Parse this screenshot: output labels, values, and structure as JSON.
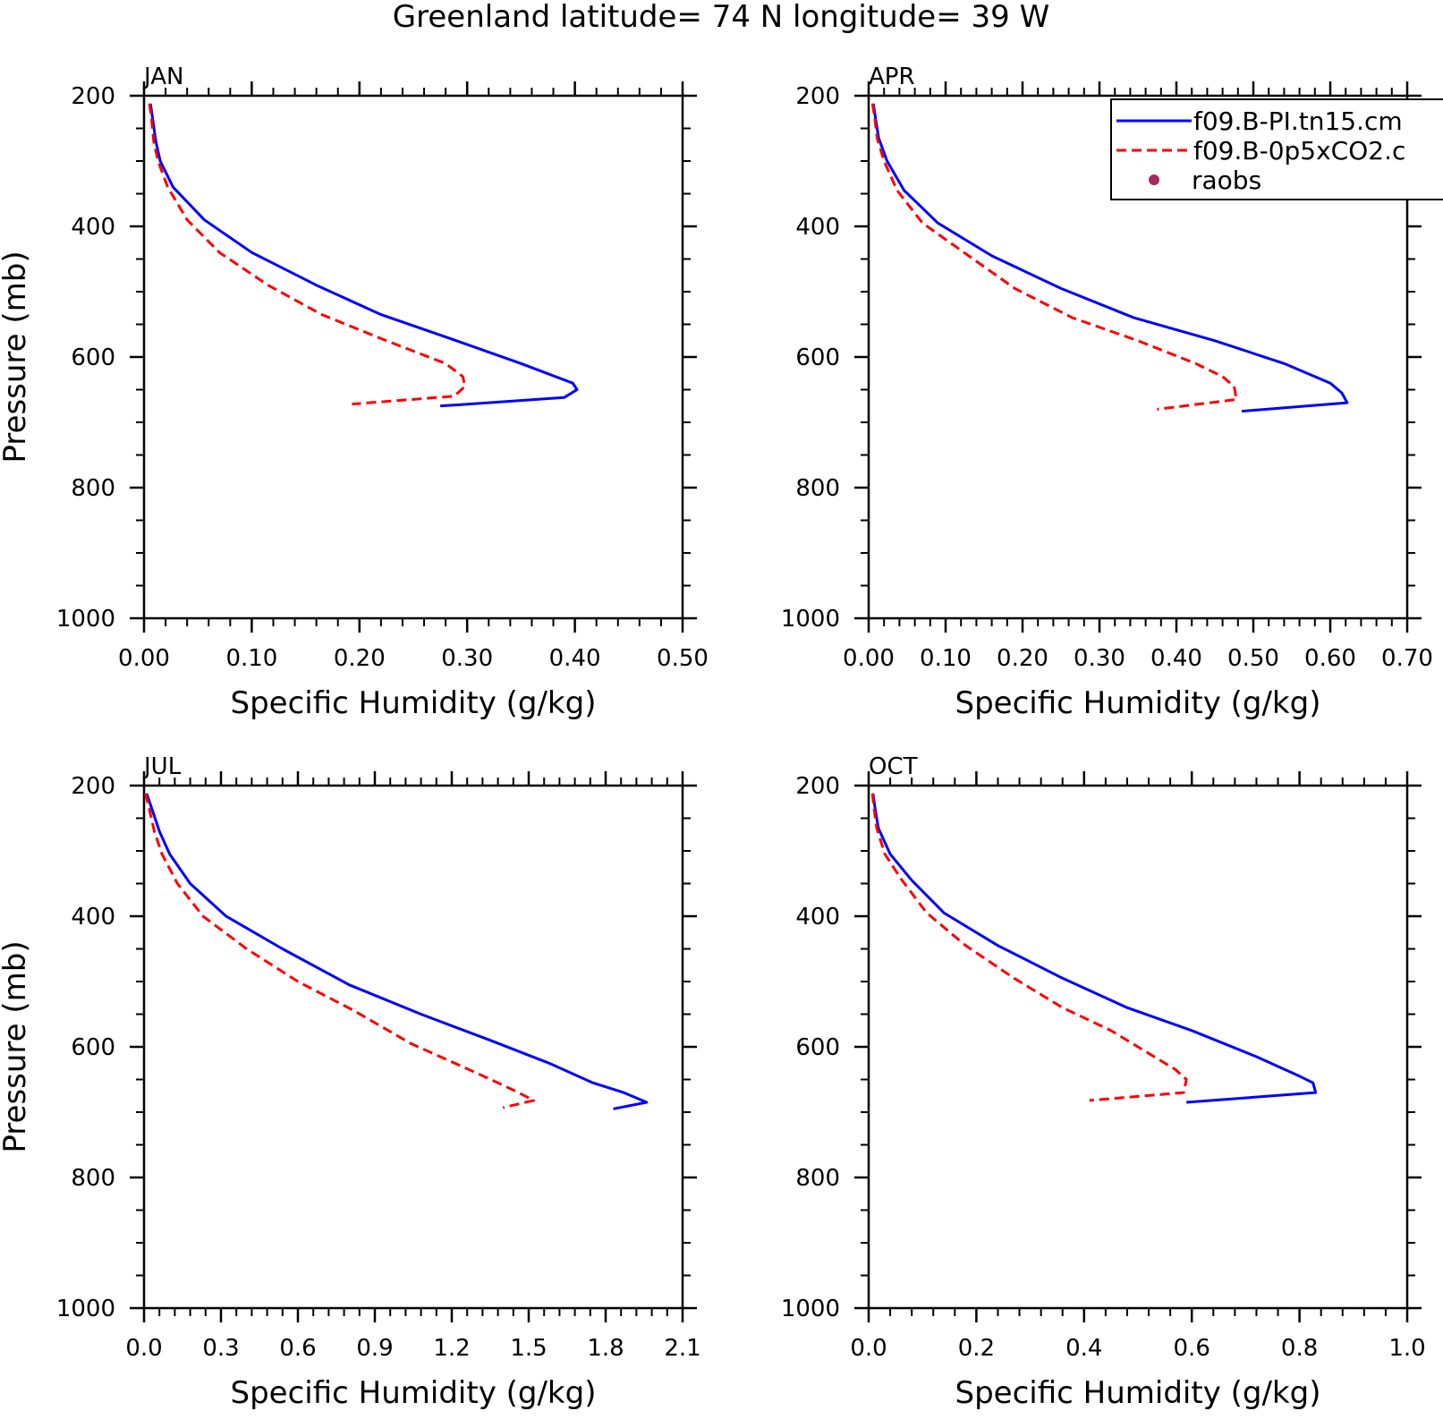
{
  "title": "Greenland  latitude= 74 N longitude= 39 W",
  "legend": {
    "entries": [
      {
        "label": "f09.B-PI.tn15.cm",
        "color": "#0000ff",
        "style": "solid"
      },
      {
        "label": "f09.B-0p5xCO2.c",
        "color": "#ff0000",
        "style": "dashed"
      },
      {
        "label": "raobs",
        "color": "#a6295f",
        "style": "marker"
      }
    ]
  },
  "chart_data": [
    {
      "type": "line",
      "panel_label": "JAN",
      "xlabel": "Specific Humidity (g/kg)",
      "ylabel": "Pressure (mb)",
      "xlim": [
        0,
        0.5
      ],
      "ylim": [
        200,
        1000
      ],
      "y_inverted": true,
      "xticks": [
        "0.00",
        "0.10",
        "0.20",
        "0.30",
        "0.40",
        "0.50"
      ],
      "xtick_values": [
        0,
        0.1,
        0.2,
        0.3,
        0.4,
        0.5
      ],
      "yticks": [
        "200",
        "400",
        "600",
        "800",
        "1000"
      ],
      "ytick_values": [
        200,
        400,
        600,
        800,
        1000
      ],
      "series": [
        {
          "name": "f09.B-PI.tn15.cm",
          "color": "#0000ff",
          "dash": false,
          "x": [
            0.006,
            0.008,
            0.011,
            0.015,
            0.027,
            0.056,
            0.1,
            0.16,
            0.22,
            0.29,
            0.35,
            0.398,
            0.402,
            0.39,
            0.275
          ],
          "y": [
            212,
            235,
            270,
            300,
            340,
            390,
            440,
            490,
            535,
            575,
            610,
            640,
            650,
            662,
            675
          ]
        },
        {
          "name": "f09.B-0p5xCO2.c",
          "color": "#ff0000",
          "dash": true,
          "x": [
            0.005,
            0.007,
            0.009,
            0.013,
            0.022,
            0.04,
            0.07,
            0.115,
            0.165,
            0.225,
            0.28,
            0.296,
            0.298,
            0.288,
            0.193
          ],
          "y": [
            212,
            235,
            270,
            300,
            340,
            390,
            440,
            490,
            535,
            575,
            610,
            630,
            645,
            660,
            672
          ]
        }
      ]
    },
    {
      "type": "line",
      "panel_label": "APR",
      "xlabel": "Specific Humidity (g/kg)",
      "ylabel": "",
      "xlim": [
        0,
        0.7
      ],
      "ylim": [
        200,
        1000
      ],
      "y_inverted": true,
      "xticks": [
        "0.00",
        "0.10",
        "0.20",
        "0.30",
        "0.40",
        "0.50",
        "0.60",
        "0.70"
      ],
      "xtick_values": [
        0,
        0.1,
        0.2,
        0.3,
        0.4,
        0.5,
        0.6,
        0.7
      ],
      "yticks": [
        "200",
        "400",
        "600",
        "800",
        "1000"
      ],
      "ytick_values": [
        200,
        400,
        600,
        800,
        1000
      ],
      "series": [
        {
          "name": "f09.B-PI.tn15.cm",
          "color": "#0000ff",
          "dash": false,
          "x": [
            0.006,
            0.009,
            0.013,
            0.024,
            0.046,
            0.09,
            0.16,
            0.25,
            0.345,
            0.45,
            0.54,
            0.6,
            0.615,
            0.622,
            0.485
          ],
          "y": [
            212,
            235,
            265,
            300,
            345,
            395,
            445,
            495,
            540,
            575,
            610,
            640,
            655,
            670,
            683
          ]
        },
        {
          "name": "f09.B-0p5xCO2.c",
          "color": "#ff0000",
          "dash": true,
          "x": [
            0.005,
            0.008,
            0.011,
            0.02,
            0.037,
            0.07,
            0.13,
            0.19,
            0.265,
            0.35,
            0.425,
            0.46,
            0.475,
            0.478,
            0.375
          ],
          "y": [
            212,
            235,
            265,
            300,
            345,
            395,
            445,
            495,
            540,
            575,
            610,
            630,
            645,
            665,
            680
          ]
        }
      ]
    },
    {
      "type": "line",
      "panel_label": "JUL",
      "xlabel": "Specific Humidity (g/kg)",
      "ylabel": "Pressure (mb)",
      "xlim": [
        0,
        2.1
      ],
      "ylim": [
        200,
        1000
      ],
      "y_inverted": true,
      "xticks": [
        "0.0",
        "0.3",
        "0.6",
        "0.9",
        "1.2",
        "1.5",
        "1.8",
        "2.1"
      ],
      "xtick_values": [
        0,
        0.3,
        0.6,
        0.9,
        1.2,
        1.5,
        1.8,
        2.1
      ],
      "yticks": [
        "200",
        "400",
        "600",
        "800",
        "1000"
      ],
      "ytick_values": [
        200,
        400,
        600,
        800,
        1000
      ],
      "series": [
        {
          "name": "f09.B-PI.tn15.cm",
          "color": "#0000ff",
          "dash": false,
          "x": [
            0.01,
            0.03,
            0.06,
            0.1,
            0.18,
            0.32,
            0.54,
            0.8,
            1.08,
            1.35,
            1.58,
            1.75,
            1.87,
            1.96,
            1.83
          ],
          "y": [
            212,
            235,
            270,
            305,
            350,
            400,
            450,
            505,
            550,
            590,
            625,
            655,
            670,
            685,
            695
          ]
        },
        {
          "name": "f09.B-0p5xCO2.c",
          "color": "#ff0000",
          "dash": true,
          "x": [
            0.006,
            0.02,
            0.04,
            0.07,
            0.13,
            0.23,
            0.4,
            0.6,
            0.82,
            1.04,
            1.24,
            1.38,
            1.46,
            1.52,
            1.4
          ],
          "y": [
            212,
            235,
            270,
            305,
            350,
            400,
            450,
            500,
            545,
            595,
            630,
            655,
            670,
            682,
            693
          ]
        }
      ]
    },
    {
      "type": "line",
      "panel_label": "OCT",
      "xlabel": "Specific Humidity (g/kg)",
      "ylabel": "",
      "xlim": [
        0,
        1.0
      ],
      "ylim": [
        200,
        1000
      ],
      "y_inverted": true,
      "xticks": [
        "0.0",
        "0.2",
        "0.4",
        "0.6",
        "0.8",
        "1.0"
      ],
      "xtick_values": [
        0,
        0.2,
        0.4,
        0.6,
        0.8,
        1.0
      ],
      "yticks": [
        "200",
        "400",
        "600",
        "800",
        "1000"
      ],
      "ytick_values": [
        200,
        400,
        600,
        800,
        1000
      ],
      "series": [
        {
          "name": "f09.B-PI.tn15.cm",
          "color": "#0000ff",
          "dash": false,
          "x": [
            0.008,
            0.012,
            0.018,
            0.04,
            0.08,
            0.14,
            0.24,
            0.36,
            0.48,
            0.6,
            0.72,
            0.8,
            0.825,
            0.83,
            0.59
          ],
          "y": [
            212,
            235,
            265,
            305,
            345,
            395,
            445,
            495,
            540,
            575,
            615,
            645,
            655,
            670,
            685
          ]
        },
        {
          "name": "f09.B-0p5xCO2.c",
          "color": "#ff0000",
          "dash": true,
          "x": [
            0.007,
            0.01,
            0.015,
            0.03,
            0.062,
            0.108,
            0.18,
            0.27,
            0.36,
            0.45,
            0.52,
            0.57,
            0.59,
            0.585,
            0.41
          ],
          "y": [
            212,
            235,
            265,
            305,
            345,
            395,
            445,
            495,
            540,
            575,
            610,
            635,
            650,
            670,
            682
          ]
        }
      ]
    }
  ]
}
